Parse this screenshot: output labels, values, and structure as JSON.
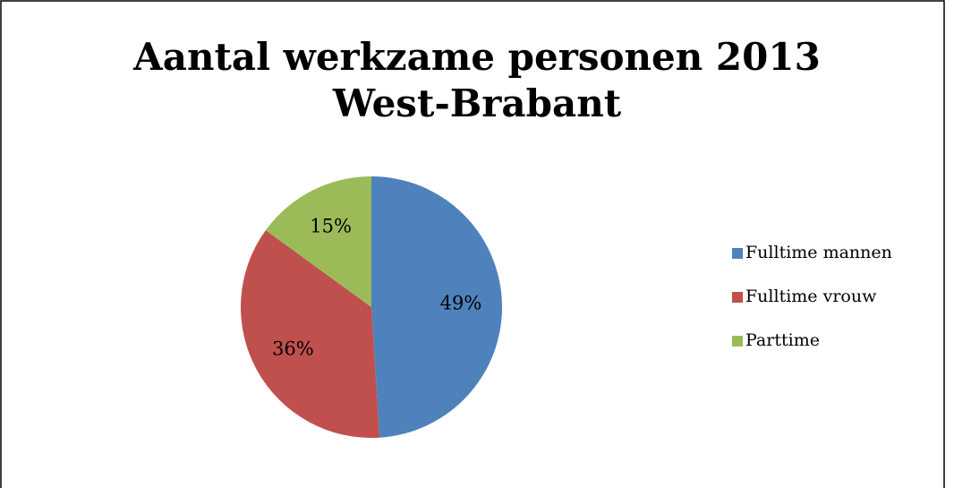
{
  "chart_data": {
    "type": "pie",
    "title": [
      "Aantal werkzame personen 2013",
      "West-Brabant"
    ],
    "categories": [
      "Fulltime mannen",
      "Fulltime vrouw",
      "Parttime"
    ],
    "values": [
      49,
      36,
      15
    ],
    "value_labels": [
      "49%",
      "36%",
      "15%"
    ],
    "colors": [
      "#4f81bd",
      "#c0504d",
      "#9bbb59"
    ],
    "legend": "right"
  }
}
